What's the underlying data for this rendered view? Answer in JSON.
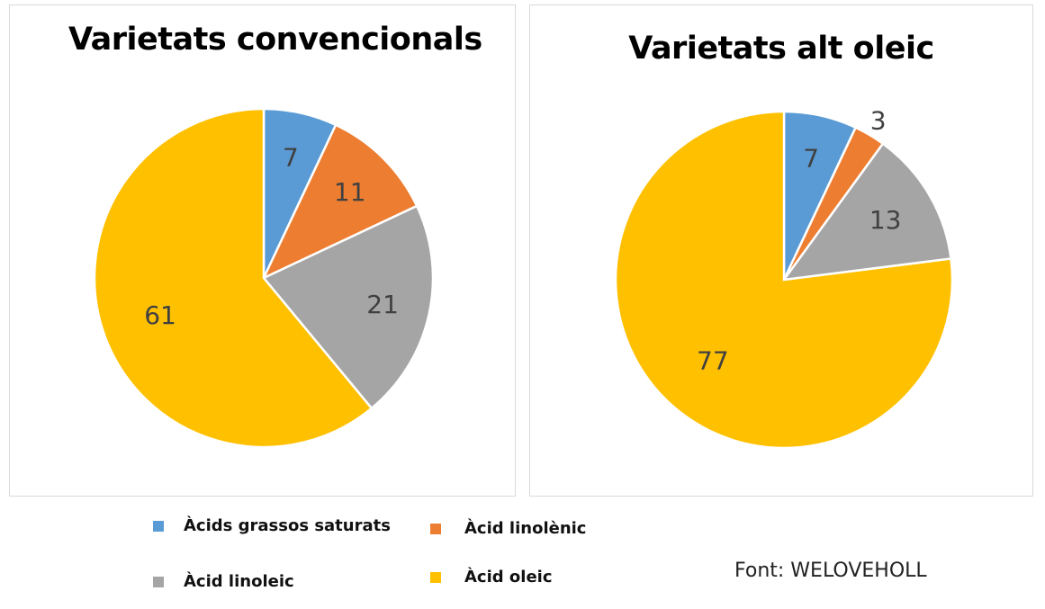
{
  "colors": {
    "saturats": "#5B9BD5",
    "linolenic": "#ED7D31",
    "linoleic": "#A5A5A5",
    "oleic": "#FFC000"
  },
  "chart_data": [
    {
      "type": "pie",
      "title": "Varietats convencionals",
      "categories": [
        "Àcids grassos saturats",
        "Àcid linolènic",
        "Àcid linoleic",
        "Àcid oleic"
      ],
      "values": [
        7,
        11,
        21,
        61
      ],
      "colors": [
        "#5B9BD5",
        "#ED7D31",
        "#A5A5A5",
        "#FFC000"
      ],
      "start_angle_deg": 0,
      "direction": "clockwise"
    },
    {
      "type": "pie",
      "title": "Varietats alt oleic",
      "categories": [
        "Àcids grassos saturats",
        "Àcid linolènic",
        "Àcid linoleic",
        "Àcid oleic"
      ],
      "values": [
        7,
        3,
        13,
        77
      ],
      "colors": [
        "#5B9BD5",
        "#ED7D31",
        "#A5A5A5",
        "#FFC000"
      ],
      "start_angle_deg": 0,
      "direction": "clockwise"
    }
  ],
  "legend": [
    {
      "label": "Àcids grassos saturats",
      "color": "#5B9BD5"
    },
    {
      "label": "Àcid linolènic",
      "color": "#ED7D31"
    },
    {
      "label": "Àcid linoleic",
      "color": "#A5A5A5"
    },
    {
      "label": "Àcid oleic",
      "color": "#FFC000"
    }
  ],
  "source": "Font: WELOVEHOLL"
}
